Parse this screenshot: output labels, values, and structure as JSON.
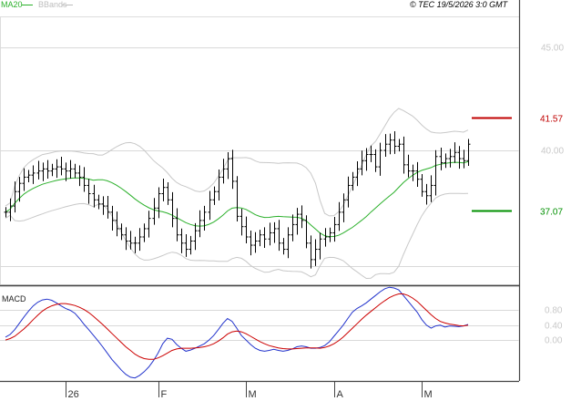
{
  "header": {
    "indicator_ma": "MA20",
    "indicator_bbands": "BBands",
    "copyright": "© TEC 19/5/2026 3:0 GMT",
    "legend_ma_color": "#2bb02b",
    "legend_bbands_color": "#bdbdbd"
  },
  "macd_label": "MACD",
  "colors": {
    "ma": "#2bb02b",
    "bands": "#c8c8c8",
    "grid": "#d9d9d9",
    "panel_border": "#444444",
    "resistance": "#c00000",
    "support": "#009000",
    "macd": "#2233cc",
    "signal": "#cc0000",
    "bar": "#000000"
  },
  "chart_data": [
    {
      "type": "ohlc",
      "panel": "price",
      "y_axis": {
        "min": 33.5,
        "max": 46.5,
        "ticks": [
          40.0,
          45.0
        ],
        "tick_labels": [
          "40.00",
          "45.00"
        ]
      },
      "x_axis": {
        "tick_labels": [
          "26",
          "F",
          "M",
          "A",
          "M"
        ],
        "tick_bar_index": [
          13,
          33,
          52,
          71,
          90
        ]
      },
      "levels": [
        {
          "name": "resistance",
          "value": 41.57,
          "label": "41.57",
          "color": "#c00000"
        },
        {
          "name": "support",
          "value": 37.07,
          "label": "37.07",
          "color": "#009000"
        }
      ],
      "close": [
        37.0,
        37.3,
        38.0,
        38.4,
        38.7,
        38.8,
        38.9,
        39.0,
        39.1,
        39.0,
        39.1,
        39.2,
        39.1,
        39.0,
        39.1,
        38.9,
        38.7,
        38.3,
        37.9,
        37.6,
        37.4,
        37.3,
        37.0,
        36.6,
        36.2,
        35.9,
        35.6,
        35.5,
        35.5,
        35.8,
        36.2,
        36.7,
        37.2,
        37.9,
        38.2,
        37.6,
        36.7,
        35.9,
        35.5,
        35.2,
        35.6,
        36.1,
        36.6,
        37.0,
        37.6,
        38.0,
        38.7,
        39.1,
        39.6,
        38.5,
        36.8,
        36.3,
        35.8,
        35.4,
        35.6,
        35.9,
        35.7,
        36.0,
        36.2,
        35.5,
        35.2,
        35.9,
        36.4,
        36.9,
        36.6,
        35.5,
        34.7,
        35.2,
        35.7,
        35.8,
        36.0,
        36.4,
        37.0,
        37.6,
        38.3,
        38.7,
        39.1,
        39.5,
        39.8,
        39.8,
        39.2,
        40.0,
        40.3,
        40.5,
        40.2,
        40.3,
        39.3,
        39.0,
        39.0,
        38.6,
        38.0,
        37.8,
        38.3,
        39.7,
        39.4,
        39.6,
        39.7,
        39.9,
        39.6,
        39.5,
        40.3
      ]
    },
    {
      "type": "line",
      "panel": "macd",
      "y_axis": {
        "min": -1.1,
        "max": 1.4,
        "ticks": [
          0.0,
          0.4,
          0.8
        ],
        "tick_labels": [
          "0.00",
          "0.40",
          "0.80"
        ]
      },
      "series": [
        {
          "name": "MACD",
          "color": "#2233cc",
          "values": [
            0.08,
            0.15,
            0.28,
            0.45,
            0.62,
            0.78,
            0.92,
            1.02,
            1.08,
            1.1,
            1.07,
            1.0,
            0.92,
            0.85,
            0.8,
            0.72,
            0.58,
            0.42,
            0.28,
            0.13,
            -0.02,
            -0.18,
            -0.35,
            -0.52,
            -0.66,
            -0.8,
            -0.92,
            -1.0,
            -1.02,
            -0.95,
            -0.85,
            -0.72,
            -0.55,
            -0.35,
            -0.1,
            0.05,
            0.02,
            -0.12,
            -0.22,
            -0.3,
            -0.27,
            -0.22,
            -0.16,
            -0.1,
            0.0,
            0.12,
            0.28,
            0.45,
            0.58,
            0.5,
            0.32,
            0.12,
            0.0,
            -0.12,
            -0.22,
            -0.28,
            -0.3,
            -0.28,
            -0.25,
            -0.28,
            -0.3,
            -0.28,
            -0.24,
            -0.18,
            -0.16,
            -0.18,
            -0.22,
            -0.22,
            -0.2,
            -0.15,
            -0.05,
            0.1,
            0.25,
            0.4,
            0.58,
            0.75,
            0.85,
            0.92,
            1.0,
            1.1,
            1.2,
            1.3,
            1.38,
            1.42,
            1.4,
            1.35,
            1.2,
            1.05,
            0.9,
            0.75,
            0.55,
            0.4,
            0.32,
            0.38,
            0.4,
            0.35,
            0.38,
            0.37,
            0.36,
            0.38,
            0.42
          ]
        },
        {
          "name": "Signal",
          "color": "#cc0000",
          "values": [
            0.0,
            0.04,
            0.1,
            0.2,
            0.3,
            0.42,
            0.55,
            0.67,
            0.78,
            0.86,
            0.92,
            0.96,
            0.98,
            0.98,
            0.96,
            0.93,
            0.88,
            0.82,
            0.74,
            0.64,
            0.53,
            0.42,
            0.3,
            0.18,
            0.06,
            -0.06,
            -0.18,
            -0.28,
            -0.38,
            -0.45,
            -0.5,
            -0.52,
            -0.52,
            -0.48,
            -0.42,
            -0.35,
            -0.28,
            -0.24,
            -0.22,
            -0.22,
            -0.22,
            -0.21,
            -0.2,
            -0.18,
            -0.15,
            -0.1,
            -0.03,
            0.06,
            0.16,
            0.22,
            0.24,
            0.22,
            0.17,
            0.1,
            0.03,
            -0.04,
            -0.1,
            -0.15,
            -0.18,
            -0.21,
            -0.23,
            -0.24,
            -0.24,
            -0.23,
            -0.22,
            -0.21,
            -0.21,
            -0.21,
            -0.22,
            -0.2,
            -0.16,
            -0.1,
            -0.02,
            0.08,
            0.2,
            0.32,
            0.44,
            0.56,
            0.67,
            0.77,
            0.87,
            0.97,
            1.06,
            1.14,
            1.2,
            1.24,
            1.24,
            1.2,
            1.13,
            1.04,
            0.92,
            0.8,
            0.68,
            0.58,
            0.5,
            0.46,
            0.43,
            0.41,
            0.39,
            0.38,
            0.4
          ]
        }
      ]
    }
  ]
}
